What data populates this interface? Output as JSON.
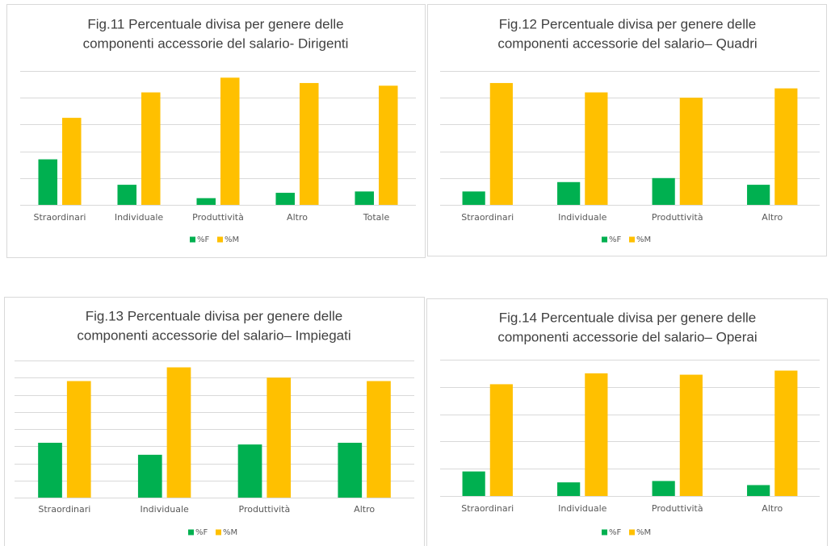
{
  "chart_data": [
    {
      "type": "bar",
      "title": [
        "Fig.11 Percentuale divisa per genere delle",
        "componenti accessorie del salario- Dirigenti"
      ],
      "categories": [
        "Straordinari",
        "Individuale",
        "Produttività",
        "Altro",
        "Totale"
      ],
      "series": [
        {
          "name": "%F",
          "color": "#00b050",
          "values": [
            34,
            15,
            5,
            9,
            10
          ]
        },
        {
          "name": "%M",
          "color": "#ffc000",
          "values": [
            65,
            84,
            95,
            91,
            89
          ]
        }
      ],
      "ylim": [
        0,
        100
      ],
      "yticks": [
        0,
        20,
        40,
        60,
        80,
        100
      ],
      "grid": true
    },
    {
      "type": "bar",
      "title": [
        "Fig.12 Percentuale divisa per genere delle",
        "componenti accessorie del salario– Quadri"
      ],
      "categories": [
        "Straordinari",
        "Individuale",
        "Produttività",
        "Altro"
      ],
      "series": [
        {
          "name": "%F",
          "color": "#00b050",
          "values": [
            10,
            17,
            20,
            15
          ]
        },
        {
          "name": "%M",
          "color": "#ffc000",
          "values": [
            91,
            84,
            80,
            87
          ]
        }
      ],
      "ylim": [
        0,
        100
      ],
      "yticks": [
        0,
        20,
        40,
        60,
        80,
        100
      ],
      "grid": true
    },
    {
      "type": "bar",
      "title": [
        "Fig.13 Percentuale divisa per genere delle",
        "componenti accessorie del salario– Impiegati"
      ],
      "categories": [
        "Straordinari",
        "Individuale",
        "Produttività",
        "Altro"
      ],
      "series": [
        {
          "name": "%F",
          "color": "#00b050",
          "values": [
            32,
            25,
            31,
            32
          ]
        },
        {
          "name": "%M",
          "color": "#ffc000",
          "values": [
            68,
            76,
            70,
            68
          ]
        }
      ],
      "ylim": [
        0,
        80
      ],
      "yticks": [
        0,
        10,
        20,
        30,
        40,
        50,
        60,
        70,
        80
      ],
      "grid": true
    },
    {
      "type": "bar",
      "title": [
        "Fig.14 Percentuale divisa per genere delle",
        "componenti accessorie del salario– Operai"
      ],
      "categories": [
        "Straordinari",
        "Individuale",
        "Produttività",
        "Altro"
      ],
      "series": [
        {
          "name": "%F",
          "color": "#00b050",
          "values": [
            18,
            10,
            11,
            8
          ]
        },
        {
          "name": "%M",
          "color": "#ffc000",
          "values": [
            82,
            90,
            89,
            92
          ]
        }
      ],
      "ylim": [
        0,
        100
      ],
      "yticks": [
        0,
        20,
        40,
        60,
        80,
        100
      ],
      "grid": true
    }
  ]
}
